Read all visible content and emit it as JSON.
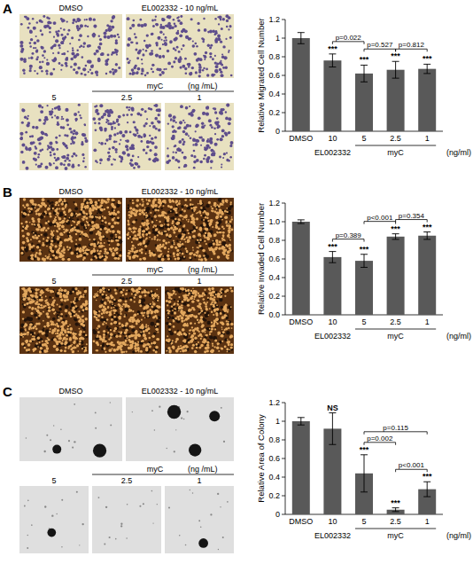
{
  "panels": [
    {
      "letter": "A",
      "top_labels": [
        "DMSO",
        "EL002332 - 10 ng/mL"
      ],
      "group": "myC",
      "unit": "(ng /mL)",
      "doses": [
        "5",
        "2.5",
        "1"
      ]
    },
    {
      "letter": "B",
      "top_labels": [
        "DMSO",
        "EL002332 - 10 ng/mL"
      ],
      "group": "myC",
      "unit": "(ng /mL)",
      "doses": [
        "5",
        "2.5",
        "1"
      ]
    },
    {
      "letter": "C",
      "top_labels": [
        "DMSO",
        "EL002332 - 10 ng/mL"
      ],
      "group": "myC",
      "unit": "(ng /mL)",
      "doses": [
        "5",
        "2.5",
        "1"
      ]
    }
  ],
  "chart_data": [
    {
      "type": "bar",
      "y_label": "Relative Migrated Cell Number",
      "x_label": "(ng/ml)",
      "categories": [
        "DMSO",
        "10",
        "5",
        "2.5",
        "1"
      ],
      "values": [
        1,
        0.76,
        0.62,
        0.66,
        0.67
      ],
      "errors": [
        0.06,
        0.07,
        0.09,
        0.09,
        0.05
      ],
      "color": "#595959",
      "ylim": [
        0,
        1.2
      ],
      "yticks": [
        0,
        0.2,
        0.4,
        0.6,
        0.8,
        1,
        1.2
      ],
      "grid": false,
      "annotations": [
        {
          "text": "***",
          "index": 1
        },
        {
          "text": "***",
          "index": 2
        },
        {
          "text": "***",
          "index": 3
        },
        {
          "text": "***",
          "index": 4
        }
      ],
      "comparisons": [
        {
          "text": "p=0.022",
          "from": 1,
          "to": 2
        },
        {
          "text": "p=0.527",
          "from": 2,
          "to": 3
        },
        {
          "text": "p=0.812",
          "from": 3,
          "to": 4
        }
      ],
      "groups": [
        {
          "text": "EL002332",
          "from": 1,
          "to": 1
        },
        {
          "text": "myC",
          "from": 2,
          "to": 4
        }
      ]
    },
    {
      "type": "bar",
      "y_label": "Relative Invaded Cell Number",
      "x_label": "(ng/ml)",
      "categories": [
        "DMSO",
        "10",
        "5",
        "2.5",
        "1"
      ],
      "values": [
        1,
        0.62,
        0.58,
        0.84,
        0.85
      ],
      "errors": [
        0.02,
        0.06,
        0.07,
        0.03,
        0.04
      ],
      "color": "#595959",
      "ylim": [
        0,
        1.2
      ],
      "yticks": [
        {
          "value": 0,
          "label": "0.0"
        },
        {
          "value": 0.2,
          "label": "0.2"
        },
        {
          "value": 0.4,
          "label": "0.4"
        },
        {
          "value": 0.6,
          "label": "0.6"
        },
        {
          "value": 0.8,
          "label": "0.8"
        },
        {
          "value": 1,
          "label": "1.0"
        },
        {
          "value": 1.2,
          "label": "1.2"
        }
      ],
      "grid": false,
      "annotations": [
        {
          "text": "***",
          "index": 1
        },
        {
          "text": "***",
          "index": 2
        },
        {
          "text": "***",
          "index": 3
        },
        {
          "text": "***",
          "index": 4
        }
      ],
      "comparisons": [
        {
          "text": "p=0.389",
          "from": 1,
          "to": 2
        },
        {
          "text": "p<0.001",
          "from": 2,
          "to": 3
        },
        {
          "text": "p=0.354",
          "from": 3,
          "to": 4
        }
      ],
      "groups": [
        {
          "text": "EL002332",
          "from": 1,
          "to": 1
        },
        {
          "text": "myC",
          "from": 2,
          "to": 4
        }
      ]
    },
    {
      "type": "bar",
      "y_label": "Relative Area of Colony",
      "x_label": "(ng/ml)",
      "categories": [
        "DMSO",
        "10",
        "5",
        "2.5",
        "1"
      ],
      "values": [
        1,
        0.92,
        0.44,
        0.05,
        0.27
      ],
      "errors": [
        0.04,
        0.17,
        0.2,
        0.02,
        0.08
      ],
      "color": "#595959",
      "ylim": [
        0,
        1.2
      ],
      "yticks": [
        0,
        0.2,
        0.4,
        0.6,
        0.8,
        1,
        1.2
      ],
      "grid": false,
      "annotations": [
        {
          "text": "NS",
          "index": 1
        },
        {
          "text": "***",
          "index": 2
        },
        {
          "text": "***",
          "index": 3
        },
        {
          "text": "***",
          "index": 4
        }
      ],
      "comparisons": [
        {
          "text": "p=0.115",
          "from": 2,
          "to": 4
        },
        {
          "text": "p=0.002",
          "from": 2,
          "to": 3
        },
        {
          "text": "p<0.001",
          "from": 3,
          "to": 4
        }
      ],
      "groups": [
        {
          "text": "EL002332",
          "from": 1,
          "to": 1
        },
        {
          "text": "myC",
          "from": 2,
          "to": 4
        }
      ]
    }
  ]
}
